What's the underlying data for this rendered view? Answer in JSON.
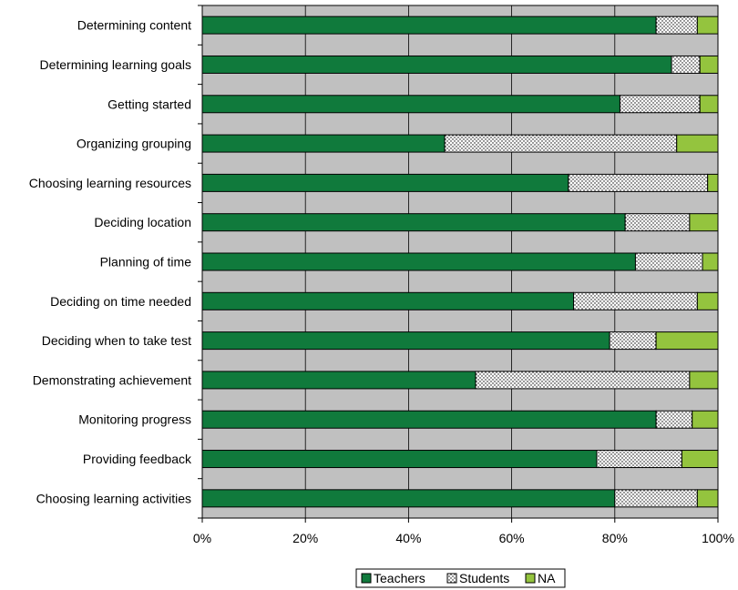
{
  "chart_data": {
    "type": "bar",
    "orientation": "horizontal",
    "stacked": true,
    "categories": [
      "Determining content",
      "Determining learning goals",
      "Getting started",
      "Organizing grouping",
      "Choosing learning resources",
      "Deciding location",
      "Planning of time",
      "Deciding on time needed",
      "Deciding when to take test",
      "Demonstrating achievement",
      "Monitoring progress",
      "Providing feedback",
      "Choosing learning activities"
    ],
    "series": [
      {
        "name": "Teachers",
        "color": "#107a3c",
        "pattern": "solid",
        "values": [
          88,
          91,
          81,
          47,
          71,
          82,
          84,
          72,
          79,
          53,
          88,
          76.5,
          80
        ]
      },
      {
        "name": "Students",
        "color": "#ffffff",
        "pattern": "dotted",
        "values": [
          8,
          5.5,
          15.5,
          45,
          27,
          12.5,
          13,
          24,
          9,
          41.5,
          7,
          16.5,
          16
        ]
      },
      {
        "name": "NA",
        "color": "#94c43e",
        "pattern": "solid",
        "values": [
          4,
          3.5,
          3.5,
          8,
          2,
          5.5,
          3,
          4,
          12,
          5.5,
          5,
          7,
          4
        ]
      }
    ],
    "xlim": [
      0,
      100
    ],
    "x_ticks": [
      "0%",
      "20%",
      "40%",
      "60%",
      "80%",
      "100%"
    ],
    "grid": true,
    "plot_background": "#c0c0c0",
    "legend_position": "bottom-center"
  }
}
